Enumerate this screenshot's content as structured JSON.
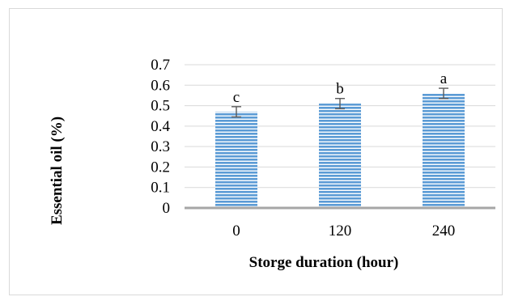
{
  "chart_data": {
    "type": "bar",
    "categories": [
      "0",
      "120",
      "240"
    ],
    "values": [
      0.47,
      0.51,
      0.56
    ],
    "error": [
      0.025,
      0.025,
      0.025
    ],
    "letters": [
      "c",
      "b",
      "a"
    ],
    "xlabel": "Storge duration (hour)",
    "ylabel": "Essential oil (%)",
    "ylim": [
      0,
      0.7
    ],
    "yticks": [
      "0",
      "0.1",
      "0.2",
      "0.3",
      "0.4",
      "0.5",
      "0.6",
      "0.7"
    ],
    "grid": true,
    "bar_color": "#5b9bd5",
    "bar_stripe_color": "#ffffff",
    "grid_color": "#d9d9d9",
    "axis_color": "#a6a6a6",
    "error_color": "#595959"
  }
}
